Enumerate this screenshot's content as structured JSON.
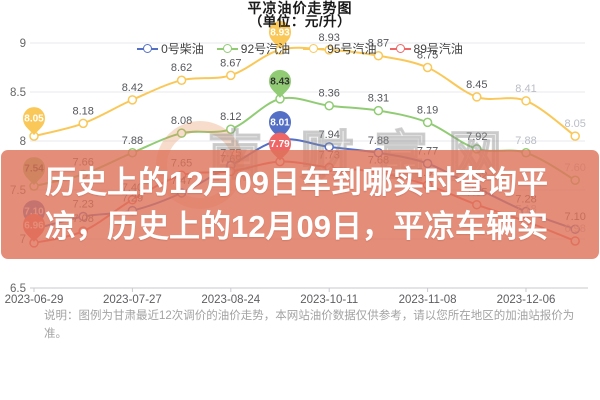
{
  "header": {
    "title": "平凉油价走势图",
    "unit_label": "（单位：元/升）"
  },
  "legend": {
    "items": [
      {
        "label": "0号柴油",
        "color": "#5470c6"
      },
      {
        "label": "92号汽油",
        "color": "#91cc75"
      },
      {
        "label": "95号汽油",
        "color": "#fac858"
      },
      {
        "label": "89号汽油",
        "color": "#ee6666"
      }
    ]
  },
  "chart_data": {
    "type": "line",
    "title": "平凉油价走势图",
    "ylabel": "元/升",
    "ylim": [
      6.5,
      9
    ],
    "y_ticks": [
      9,
      8.5,
      8,
      7.5,
      7,
      6.5
    ],
    "n_points": 12,
    "x_tick_point_indices": [
      0,
      2,
      4,
      6,
      8,
      10
    ],
    "x_tick_labels": [
      "2023-06-29",
      "2023-07-27",
      "2023-08-24",
      "2023-10-11",
      "2023-11-08",
      "2023-12-06"
    ],
    "legend_position": "top",
    "grid": "horizontal-only",
    "series": [
      {
        "name": "0号柴油",
        "color": "#5470c6",
        "values": [
          7.1,
          7.23,
          7.29,
          7.47,
          7.75,
          8.01,
          7.94,
          7.88,
          7.77,
          7.52,
          7.28,
          7.1
        ]
      },
      {
        "name": "92号汽油",
        "color": "#91cc75",
        "values": [
          7.54,
          7.66,
          7.88,
          8.08,
          8.12,
          8.43,
          8.36,
          8.31,
          8.19,
          7.92,
          7.88,
          7.6
        ]
      },
      {
        "name": "95号汽油",
        "color": "#fac858",
        "values": [
          8.05,
          8.18,
          8.42,
          8.62,
          8.67,
          8.93,
          8.93,
          8.87,
          8.75,
          8.45,
          8.41,
          8.05
        ]
      },
      {
        "name": "89号汽油",
        "color": "#ee6666",
        "values": [
          6.96,
          7.08,
          7.4,
          7.65,
          7.69,
          7.79,
          7.73,
          7.68,
          7.55,
          7.35,
          7.18,
          6.98
        ]
      }
    ],
    "markpoints": {
      "min_at_point_index": 0,
      "max_at_point_index": 5,
      "shape": "pin-with-value-label"
    }
  },
  "watermark": {
    "logo_char": "南",
    "text": "财富网",
    "ring_color": "#e98c53"
  },
  "overlay": {
    "text": "历史上的12月09日车到哪实时查询平凉，历史上的12月09日，平凉车辆实",
    "bg_color": "#de745b",
    "text_color": "#ffffff"
  },
  "note": {
    "text": "说明：图例为甘肃最近12次调价的油价走势，本网站油价数据仅供参考，请以您所在地区的加油站报价为准。"
  }
}
